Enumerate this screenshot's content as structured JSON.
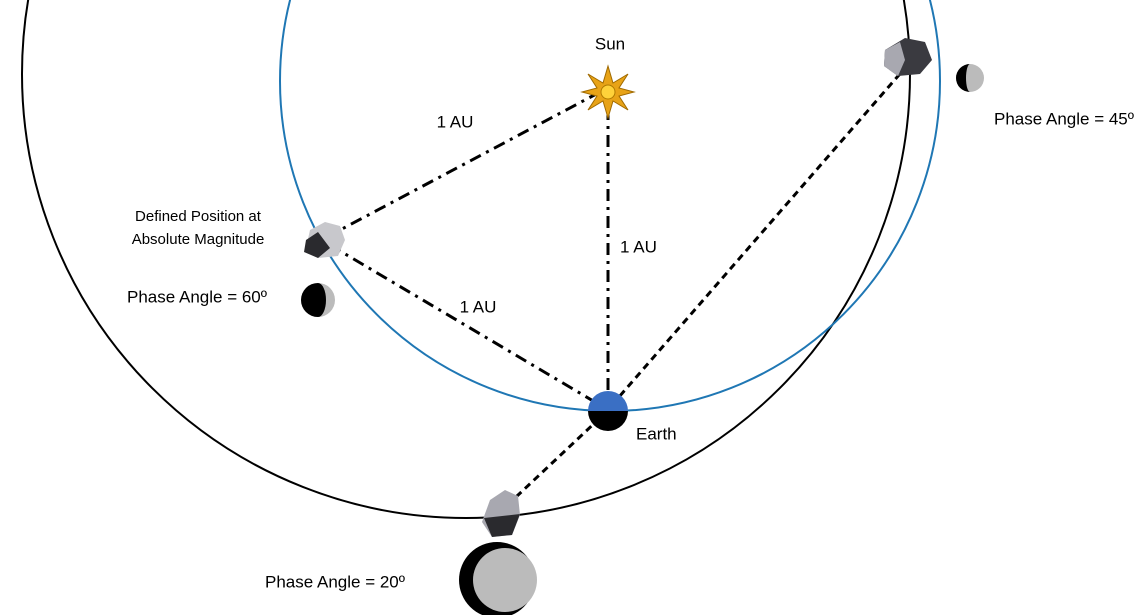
{
  "sun": {
    "label": "Sun"
  },
  "earth": {
    "label": "Earth"
  },
  "distances": [
    "1 AU",
    "1 AU",
    "1 AU"
  ],
  "defined_position": [
    "Defined Position at",
    "Absolute Magnitude"
  ],
  "phase_angles": [
    "Phase Angle = 60º",
    "Phase Angle = 45º",
    "Phase Angle = 20º"
  ]
}
